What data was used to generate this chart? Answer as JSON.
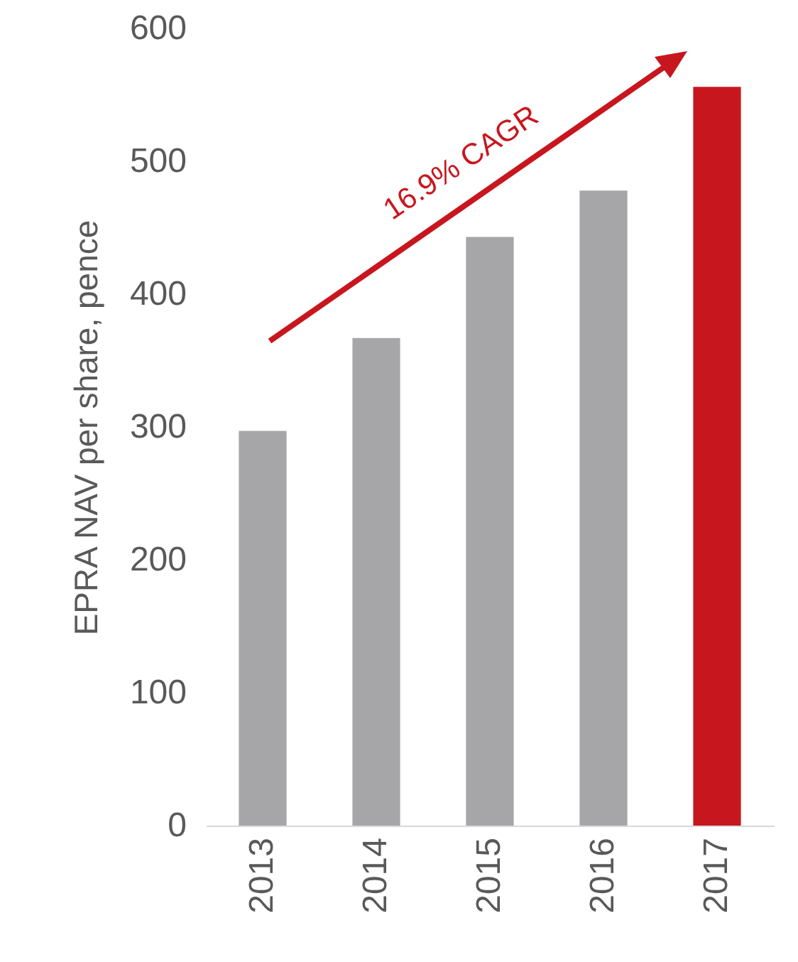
{
  "chart_data": {
    "type": "bar",
    "ylabel": "EPRA NAV per share, pence",
    "categories": [
      "2013",
      "2014",
      "2015",
      "2016",
      "2017"
    ],
    "values": [
      297,
      367,
      443,
      478,
      556
    ],
    "colors": [
      "#a6a6a9",
      "#a6a6a9",
      "#a6a6a9",
      "#a6a6a9",
      "#c8161e"
    ],
    "ylim": [
      0,
      600
    ],
    "yticks": [
      0,
      100,
      200,
      300,
      400,
      500,
      600
    ],
    "grid": false,
    "annotations": [
      "16.9% CAGR"
    ]
  }
}
